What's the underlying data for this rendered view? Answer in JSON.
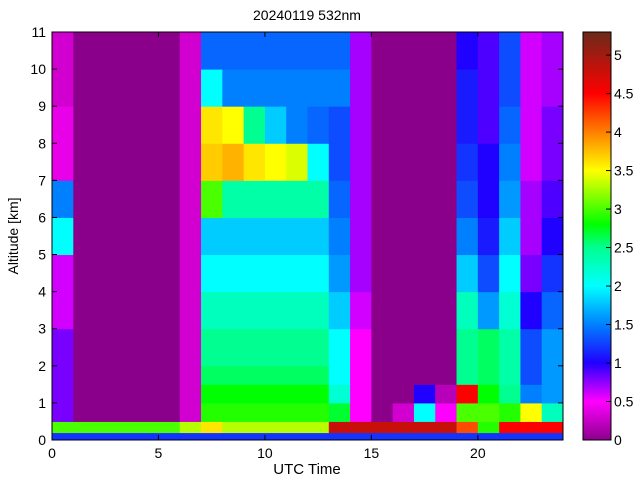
{
  "chart_data": {
    "type": "heatmap",
    "title": "20240119 532nm",
    "xlabel": "UTC Time",
    "ylabel": "Altitude [km]",
    "xlim": [
      0,
      24
    ],
    "ylim": [
      0,
      11
    ],
    "xticks": [
      0,
      5,
      10,
      15,
      20
    ],
    "yticks": [
      0,
      1,
      2,
      3,
      4,
      5,
      6,
      7,
      8,
      9,
      10,
      11
    ],
    "colorbar": {
      "range": [
        0,
        5.3
      ],
      "ticks": [
        "0",
        "0.5",
        "1",
        "1.5",
        "2",
        "2.5",
        "3",
        "3.5",
        "4",
        "4.5",
        "5"
      ],
      "colormap": [
        {
          "v": 0,
          "color": "#8b008b"
        },
        {
          "v": 0.5,
          "color": "#ff00ff"
        },
        {
          "v": 1.0,
          "color": "#2000ff"
        },
        {
          "v": 1.5,
          "color": "#0080ff"
        },
        {
          "v": 2.0,
          "color": "#00ffff"
        },
        {
          "v": 2.5,
          "color": "#00ff90"
        },
        {
          "v": 2.8,
          "color": "#00ff00"
        },
        {
          "v": 3.5,
          "color": "#ffff00"
        },
        {
          "v": 4.0,
          "color": "#ff8000"
        },
        {
          "v": 4.5,
          "color": "#ff0000"
        },
        {
          "v": 5.3,
          "color": "#6b2a1a"
        }
      ]
    },
    "x_edges": [
      0,
      1,
      2,
      3,
      4,
      5,
      6,
      7,
      8,
      9,
      10,
      11,
      12,
      13,
      14,
      15,
      16,
      17,
      18,
      19,
      20,
      21,
      22,
      23,
      24
    ],
    "y_edges": [
      0,
      0.2,
      0.5,
      1,
      1.5,
      2,
      3,
      4,
      5,
      6,
      7,
      8,
      9,
      10,
      11
    ],
    "values": [
      [
        1.2,
        1.2,
        1.2,
        1.2,
        1.2,
        1.2,
        1.2,
        1.2,
        1.2,
        1.2,
        1.2,
        1.2,
        1.2,
        1.2,
        1.2,
        1.2,
        1.2,
        1.2,
        1.2,
        1.2,
        1.2,
        1.2,
        1.2,
        1.2
      ],
      [
        3.0,
        3.0,
        3.0,
        3.0,
        3.0,
        3.0,
        3.3,
        3.6,
        3.3,
        3.3,
        3.3,
        3.3,
        3.3,
        4.8,
        4.8,
        4.8,
        4.8,
        4.8,
        4.8,
        4.2,
        2.9,
        4.5,
        4.5,
        4.5
      ],
      [
        0.8,
        0,
        0,
        0,
        0,
        0,
        0.3,
        2.9,
        2.9,
        2.9,
        2.9,
        2.9,
        2.9,
        2.7,
        0.5,
        0,
        0.3,
        2.0,
        0.5,
        3.0,
        3.0,
        2.9,
        3.5,
        2.3
      ],
      [
        0.8,
        0,
        0,
        0,
        0,
        0,
        0.3,
        2.8,
        2.8,
        2.8,
        2.8,
        2.8,
        2.8,
        2.2,
        0.5,
        0,
        0,
        1.0,
        0.2,
        4.5,
        2.8,
        2.5,
        1.5,
        1.6
      ],
      [
        0.8,
        0,
        0,
        0,
        0,
        0,
        0.3,
        2.6,
        2.6,
        2.6,
        2.6,
        2.6,
        2.6,
        2.0,
        0.5,
        0,
        0,
        0,
        0,
        2.5,
        2.6,
        2.4,
        1.3,
        1.6
      ],
      [
        0.8,
        0,
        0,
        0,
        0,
        0,
        0.3,
        2.5,
        2.5,
        2.5,
        2.5,
        2.5,
        2.5,
        2.0,
        0.5,
        0,
        0,
        0,
        0,
        2.5,
        2.6,
        2.4,
        1.3,
        1.6
      ],
      [
        0.6,
        0,
        0,
        0,
        0,
        0,
        0.3,
        2.3,
        2.3,
        2.3,
        2.3,
        2.3,
        2.3,
        1.8,
        0.6,
        0,
        0,
        0,
        0,
        2.3,
        1.6,
        2.2,
        1.0,
        1.4
      ],
      [
        0.6,
        0,
        0,
        0,
        0,
        0,
        0.3,
        2.0,
        2.0,
        2.0,
        2.0,
        2.0,
        2.0,
        1.6,
        0.7,
        0,
        0,
        0,
        0,
        1.8,
        1.3,
        2.0,
        0.8,
        1.2
      ],
      [
        2.0,
        0,
        0,
        0,
        0,
        0,
        0.3,
        1.8,
        1.8,
        1.8,
        1.8,
        1.8,
        1.8,
        1.5,
        0.7,
        0,
        0,
        0,
        0,
        1.5,
        1.1,
        1.8,
        0.7,
        1.0
      ],
      [
        1.5,
        0,
        0,
        0,
        0,
        0,
        0.3,
        3.0,
        2.4,
        2.4,
        2.4,
        2.4,
        2.4,
        1.4,
        0.7,
        0,
        0,
        0,
        0,
        1.3,
        1.0,
        1.6,
        0.7,
        0.9
      ],
      [
        0.4,
        0,
        0,
        0,
        0,
        0,
        0.3,
        3.7,
        3.8,
        3.6,
        3.5,
        3.4,
        2.0,
        1.3,
        0.7,
        0,
        0,
        0,
        0,
        1.2,
        1.0,
        1.5,
        0.6,
        0.8
      ],
      [
        0.4,
        0,
        0,
        0,
        0,
        0,
        0.3,
        3.6,
        3.5,
        2.5,
        1.8,
        1.5,
        1.4,
        1.3,
        0.7,
        0,
        0,
        0,
        0,
        1.1,
        0.9,
        1.4,
        0.6,
        0.8
      ],
      [
        0.3,
        0,
        0,
        0,
        0,
        0,
        0.3,
        2.0,
        1.5,
        1.5,
        1.5,
        1.5,
        1.5,
        1.5,
        0.7,
        0,
        0,
        0,
        0,
        1.1,
        0.9,
        1.3,
        0.6,
        0.7
      ],
      [
        0.3,
        0,
        0,
        0,
        0,
        0,
        0.3,
        1.4,
        1.4,
        1.4,
        1.4,
        1.4,
        1.4,
        1.4,
        0.7,
        0,
        0,
        0,
        0,
        1.0,
        0.9,
        1.3,
        0.6,
        0.7
      ]
    ],
    "grid": false
  }
}
